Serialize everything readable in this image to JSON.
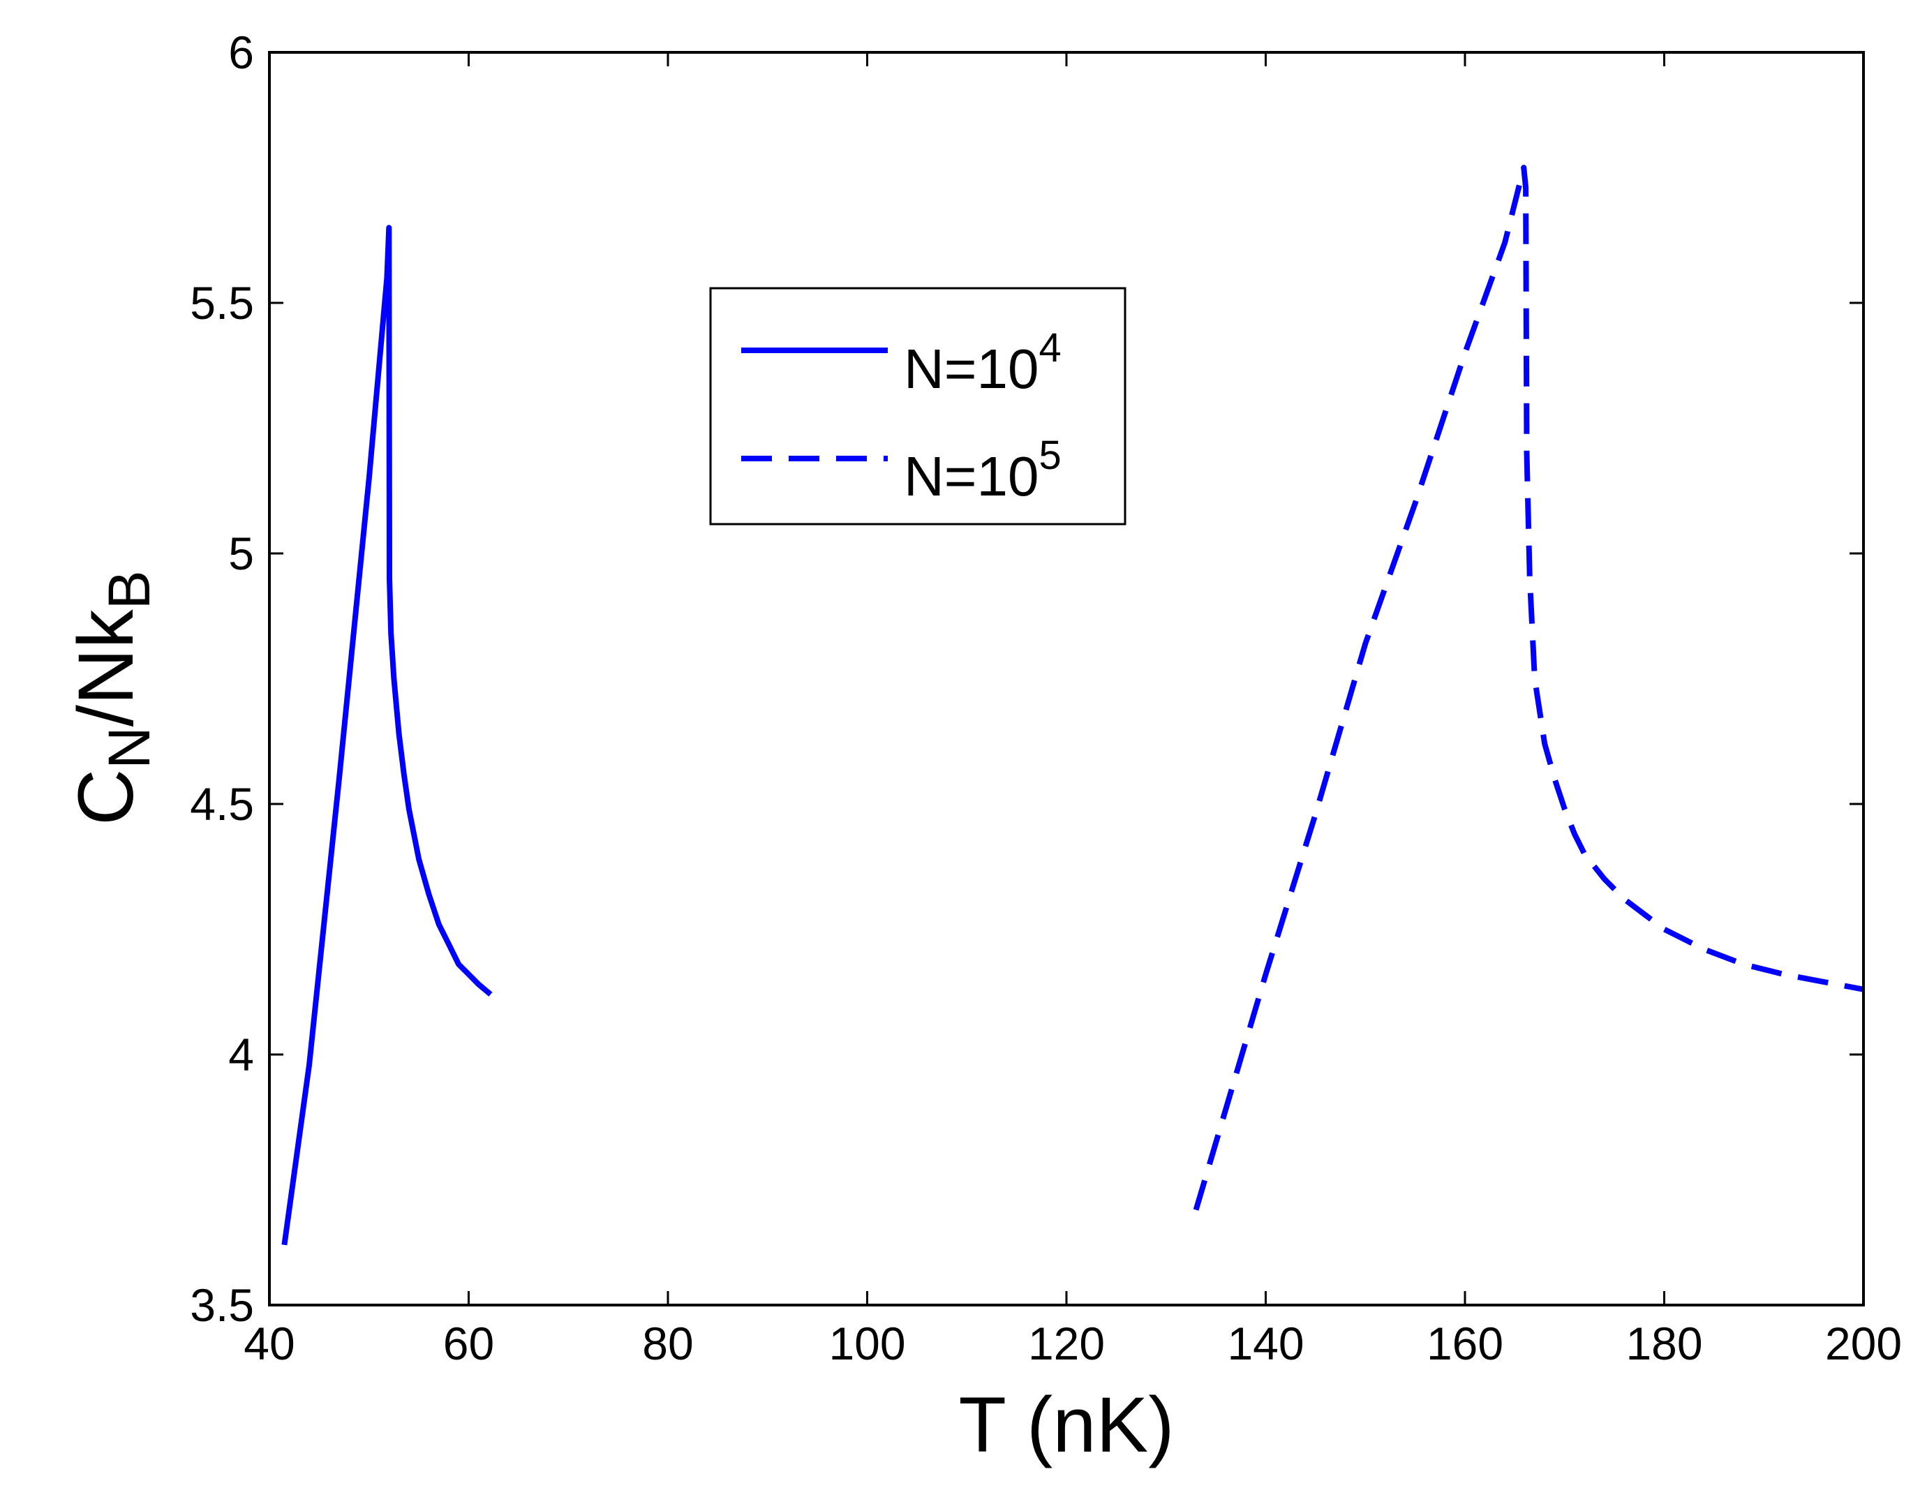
{
  "chart_data": {
    "type": "line",
    "title": "",
    "xlabel": "T (nK)",
    "ylabel": {
      "main": "C",
      "sub1": "N",
      "mid": "/Nk",
      "sub2": "B"
    },
    "xlim": [
      40,
      200
    ],
    "ylim": [
      3.5,
      6
    ],
    "xticks": [
      40,
      60,
      80,
      100,
      120,
      140,
      160,
      180,
      200
    ],
    "yticks": [
      3.5,
      4,
      4.5,
      5,
      5.5,
      6
    ],
    "grid": false,
    "legend_position": "upper-center",
    "series": [
      {
        "name": "N=10^4",
        "legend": {
          "base": "N=10",
          "exp": "4"
        },
        "color": "#0000ff",
        "style": "solid",
        "x": [
          41.5,
          44,
          47,
          50,
          51.8,
          52.0,
          52.05,
          52.2,
          52.5,
          53,
          53.5,
          54,
          55,
          56,
          57,
          58,
          59,
          60,
          61,
          62.2
        ],
        "y": [
          3.62,
          3.98,
          4.55,
          5.15,
          5.55,
          5.65,
          4.95,
          4.84,
          4.75,
          4.64,
          4.56,
          4.49,
          4.39,
          4.32,
          4.26,
          4.22,
          4.18,
          4.16,
          4.14,
          4.12
        ]
      },
      {
        "name": "N=10^5",
        "legend": {
          "base": "N=10",
          "exp": "5"
        },
        "color": "#0000ff",
        "style": "dashed",
        "x": [
          133,
          140,
          145,
          150,
          155,
          160,
          164,
          165.9,
          166.1,
          166.2,
          166.5,
          167,
          168,
          169,
          170,
          171,
          172,
          174,
          176,
          178,
          180,
          184,
          188,
          192,
          196,
          200
        ],
        "y": [
          3.69,
          4.16,
          4.48,
          4.82,
          5.1,
          5.4,
          5.62,
          5.77,
          5.73,
          5.2,
          4.95,
          4.75,
          4.62,
          4.55,
          4.49,
          4.44,
          4.4,
          4.35,
          4.31,
          4.28,
          4.25,
          4.21,
          4.18,
          4.16,
          4.145,
          4.13
        ]
      }
    ]
  }
}
